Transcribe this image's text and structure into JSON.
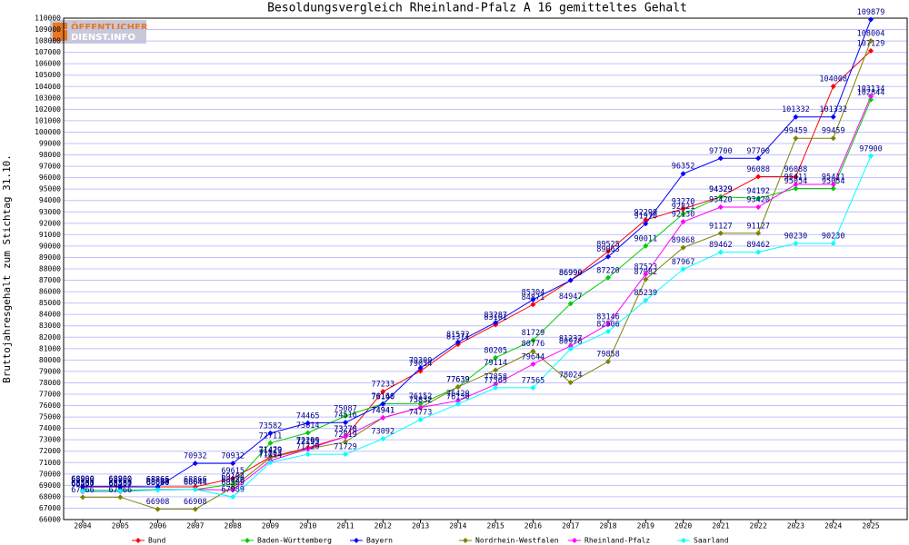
{
  "logo": [
    "ÖFFENTLICHER",
    "DIENST.INFO"
  ],
  "chart_data": {
    "type": "line",
    "title": "Besoldungsvergleich Rheinland-Pfalz A 16 gemitteltes Gehalt",
    "y_label": "Bruttojahresgehalt zum Stichtag 31.10.",
    "categories": [
      "2004",
      "2005",
      "2006",
      "2007",
      "2008",
      "2009",
      "2010",
      "2011",
      "2012",
      "2013",
      "2014",
      "2015",
      "2016",
      "2017",
      "2018",
      "2019",
      "2020",
      "2021",
      "2022",
      "2023",
      "2024",
      "2025"
    ],
    "ylim": [
      66000,
      110000
    ],
    "yticks": [
      66000,
      67000,
      68000,
      69000,
      70000,
      71000,
      72000,
      73000,
      74000,
      75000,
      76000,
      77000,
      78000,
      79000,
      80000,
      81000,
      82000,
      83000,
      84000,
      85000,
      86000,
      87000,
      88000,
      89000,
      90000,
      91000,
      92000,
      93000,
      94000,
      95000,
      96000,
      97000,
      98000,
      99000,
      100000,
      101000,
      102000,
      103000,
      104000,
      105000,
      106000,
      107000,
      108000,
      109000,
      110000
    ],
    "grid": true,
    "legend_position": "bottom",
    "series": [
      {
        "name": "Bund",
        "color": "#ff0000",
        "values": [
          68860,
          68860,
          68866,
          68866,
          69615,
          71479,
          72299,
          73278,
          77233,
          79034,
          81371,
          83101,
          84871,
          86990,
          89525,
          92299,
          93270,
          94329,
          96088,
          96088,
          104008,
          107129
        ]
      },
      {
        "name": "Baden-Württemberg",
        "color": "#00cc00",
        "values": [
          68565,
          68565,
          68644,
          68644,
          69104,
          72711,
          73614,
          75087,
          76160,
          76152,
          77639,
          80205,
          81729,
          84947,
          87220,
          90011,
          92821,
          94329,
          94192,
          95054,
          95054,
          102844
        ]
      },
      {
        "name": "Bayern",
        "color": "#0000ff",
        "values": [
          68900,
          68900,
          68866,
          70932,
          70932,
          73582,
          74465,
          74516,
          76140,
          79300,
          81572,
          83287,
          85304,
          86990,
          89063,
          91970,
          96352,
          97700,
          97700,
          101332,
          101332,
          109879
        ]
      },
      {
        "name": "Nordrhein-Westfalen",
        "color": "#808000",
        "values": [
          67966,
          67966,
          66908,
          66908,
          68826,
          71429,
          72195,
          72819,
          74941,
          75832,
          77639,
          79114,
          80776,
          78024,
          79858,
          87082,
          89868,
          91127,
          91127,
          99459,
          99459,
          108004
        ]
      },
      {
        "name": "Rheinland-Pfalz",
        "color": "#ff00ff",
        "values": [
          68457,
          68457,
          68600,
          68644,
          68589,
          71163,
          72195,
          73278,
          74941,
          75832,
          76420,
          77858,
          79644,
          81237,
          83146,
          87523,
          92130,
          93420,
          93420,
          95411,
          95411,
          103134
        ]
      },
      {
        "name": "Saarland",
        "color": "#00ffff",
        "values": [
          68500,
          68500,
          68600,
          68644,
          67989,
          71014,
          71729,
          71729,
          73092,
          74773,
          76130,
          77565,
          77565,
          80978,
          82506,
          85239,
          87967,
          89462,
          89462,
          90230,
          90230,
          97900
        ]
      }
    ]
  }
}
